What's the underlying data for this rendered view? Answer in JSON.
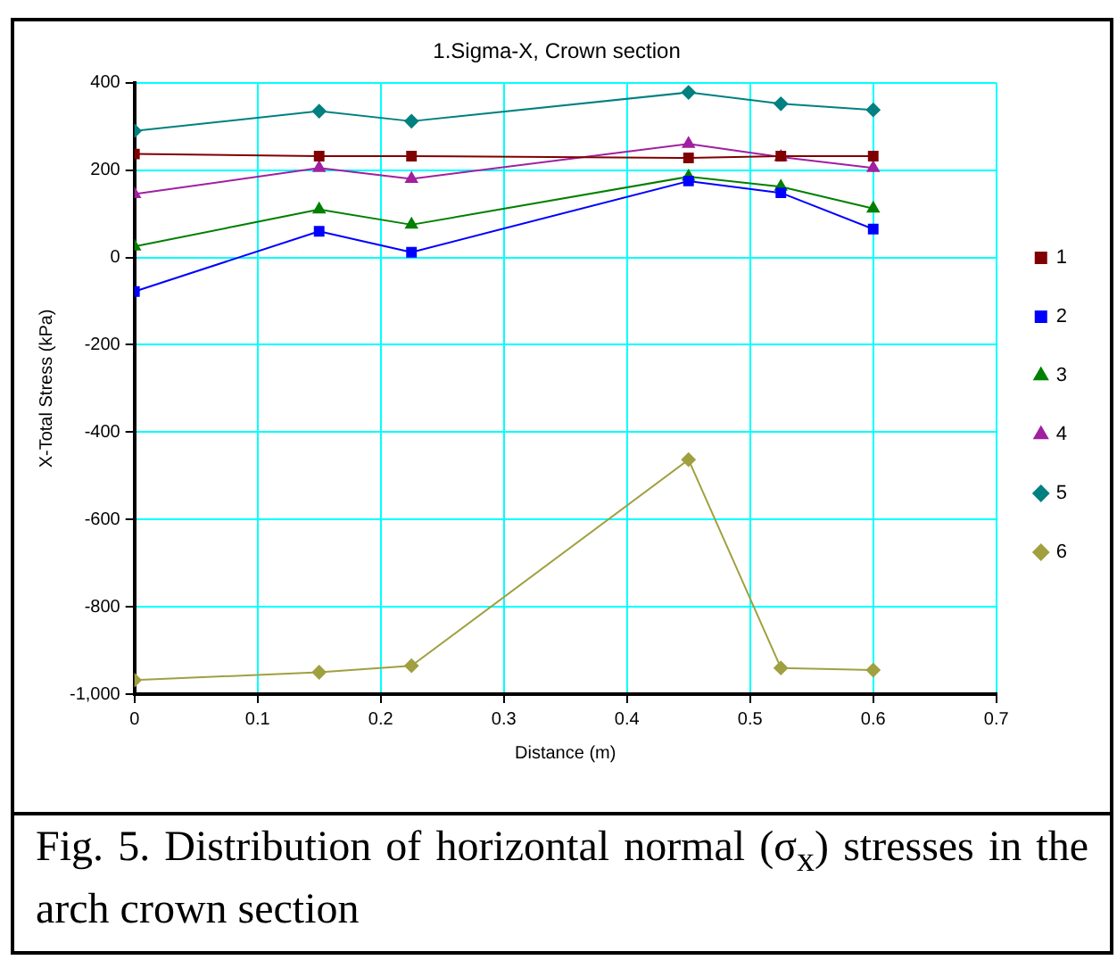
{
  "chart_data": {
    "type": "line",
    "title": "1.Sigma-X, Crown section",
    "xlabel": "Distance (m)",
    "ylabel": "X-Total Stress (kPa)",
    "x": [
      0,
      0.15,
      0.225,
      0.45,
      0.525,
      0.6
    ],
    "series": [
      {
        "name": "1",
        "color": "#800000",
        "marker": "square",
        "values": [
          237,
          232,
          232,
          228,
          232,
          232
        ]
      },
      {
        "name": "2",
        "color": "#0000ff",
        "marker": "square",
        "values": [
          -78,
          60,
          12,
          175,
          148,
          65
        ]
      },
      {
        "name": "3",
        "color": "#008000",
        "marker": "triangle",
        "values": [
          25,
          110,
          75,
          185,
          162,
          112
        ]
      },
      {
        "name": "4",
        "color": "#a020a0",
        "marker": "triangle",
        "values": [
          145,
          205,
          180,
          260,
          230,
          205
        ]
      },
      {
        "name": "5",
        "color": "#008080",
        "marker": "diamond",
        "values": [
          290,
          335,
          312,
          378,
          352,
          338
        ]
      },
      {
        "name": "6",
        "color": "#a0a040",
        "marker": "diamond",
        "values": [
          -968,
          -950,
          -935,
          -463,
          -940,
          -945
        ]
      }
    ],
    "xlim": [
      0,
      0.7
    ],
    "xticks": [
      0,
      0.1,
      0.2,
      0.3,
      0.4,
      0.5,
      0.6,
      0.7
    ],
    "ylim": [
      -1000,
      400
    ],
    "yticks": [
      {
        "value": -1000,
        "label": "-1,000"
      },
      -800,
      -600,
      -400,
      -200,
      0,
      200,
      400
    ],
    "grid": true,
    "legend": "right",
    "line_style": "solid",
    "annotations": [
      "Fig. 5. Distribution of horizontal normal (σ$_{x}$) stresses in the arch crown section"
    ]
  }
}
